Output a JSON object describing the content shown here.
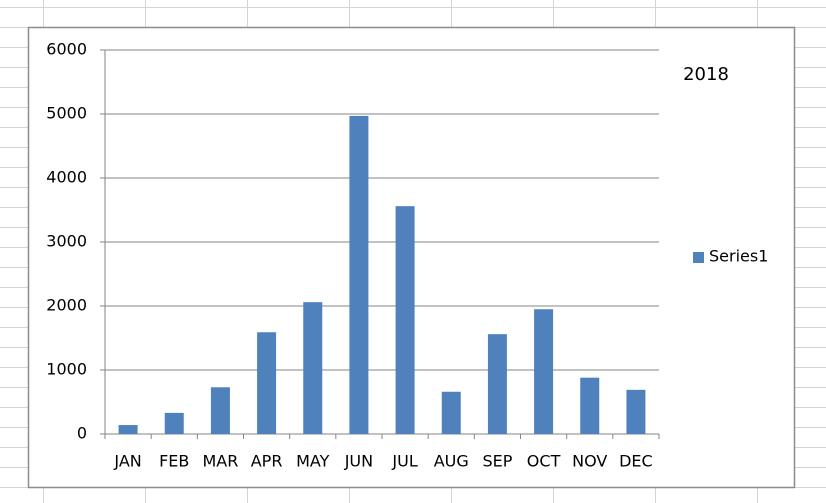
{
  "chart_data": {
    "type": "bar",
    "title": "2018",
    "categories": [
      "JAN",
      "FEB",
      "MAR",
      "APR",
      "MAY",
      "JUN",
      "JUL",
      "AUG",
      "SEP",
      "OCT",
      "NOV",
      "DEC"
    ],
    "series": [
      {
        "name": "Series1",
        "color": "#4f81bd",
        "values": [
          140,
          330,
          730,
          1590,
          2060,
          4970,
          3560,
          660,
          1560,
          1950,
          880,
          690
        ]
      }
    ],
    "ylim": [
      0,
      6000
    ],
    "yticks": [
      0,
      1000,
      2000,
      3000,
      4000,
      5000,
      6000
    ],
    "grid": true,
    "legend": "right"
  }
}
